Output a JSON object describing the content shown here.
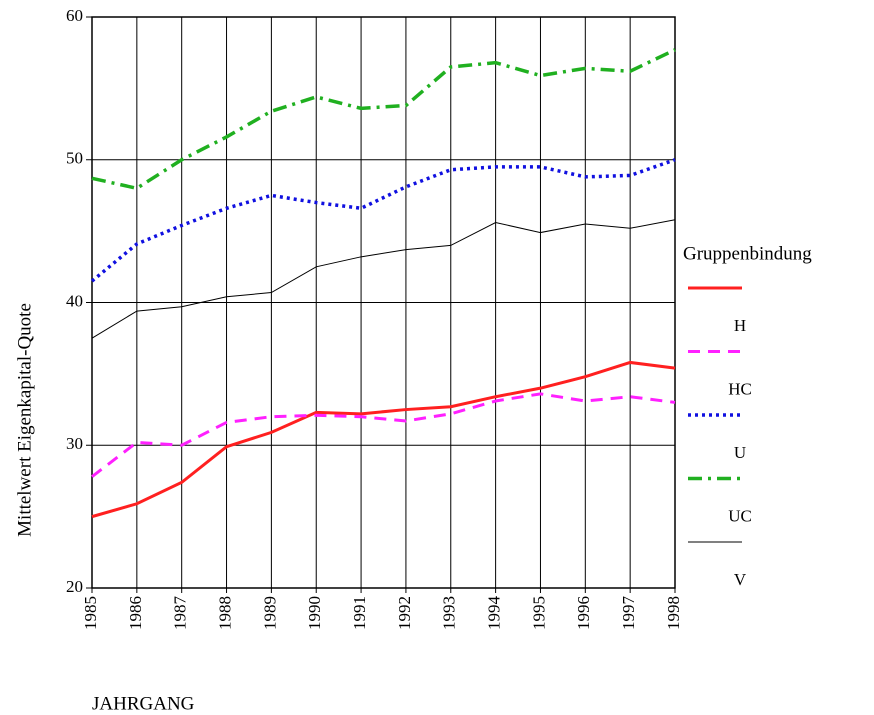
{
  "chart_data": {
    "type": "line",
    "x_label": "JAHRGANG",
    "y_label": "Mittelwert Eigenkapital-Quote",
    "legend_title": "Gruppenbindung",
    "categories": [
      "1985",
      "1986",
      "1987",
      "1988",
      "1989",
      "1990",
      "1991",
      "1992",
      "1993",
      "1994",
      "1995",
      "1996",
      "1997",
      "1998"
    ],
    "ylim": [
      20,
      60
    ],
    "yticks": [
      20,
      30,
      40,
      50,
      60
    ],
    "grid": true,
    "series": [
      {
        "name": "H",
        "color": "#ff2020",
        "values": [
          25.0,
          25.9,
          27.4,
          29.9,
          30.9,
          32.3,
          32.2,
          32.5,
          32.7,
          33.4,
          34.0,
          34.8,
          35.8,
          35.4
        ]
      },
      {
        "name": "HC",
        "color": "#ff20ff",
        "values": [
          27.8,
          30.2,
          30.0,
          31.6,
          32.0,
          32.1,
          32.0,
          31.7,
          32.2,
          33.1,
          33.6,
          33.1,
          33.4,
          33.0
        ]
      },
      {
        "name": "U",
        "color": "#1010e0",
        "values": [
          41.5,
          44.1,
          45.4,
          46.6,
          47.5,
          47.0,
          46.6,
          48.1,
          49.3,
          49.5,
          49.5,
          48.8,
          48.9,
          50.0
        ]
      },
      {
        "name": "UC",
        "color": "#20b020",
        "values": [
          48.7,
          48.0,
          50.0,
          51.6,
          53.4,
          54.4,
          53.6,
          53.8,
          56.5,
          56.8,
          55.9,
          56.4,
          56.2,
          57.7
        ]
      },
      {
        "name": "V",
        "color": "#000000",
        "values": [
          37.5,
          39.4,
          39.7,
          40.4,
          40.7,
          42.5,
          43.2,
          43.7,
          44.0,
          45.6,
          44.9,
          45.5,
          45.2,
          45.8
        ]
      }
    ]
  }
}
